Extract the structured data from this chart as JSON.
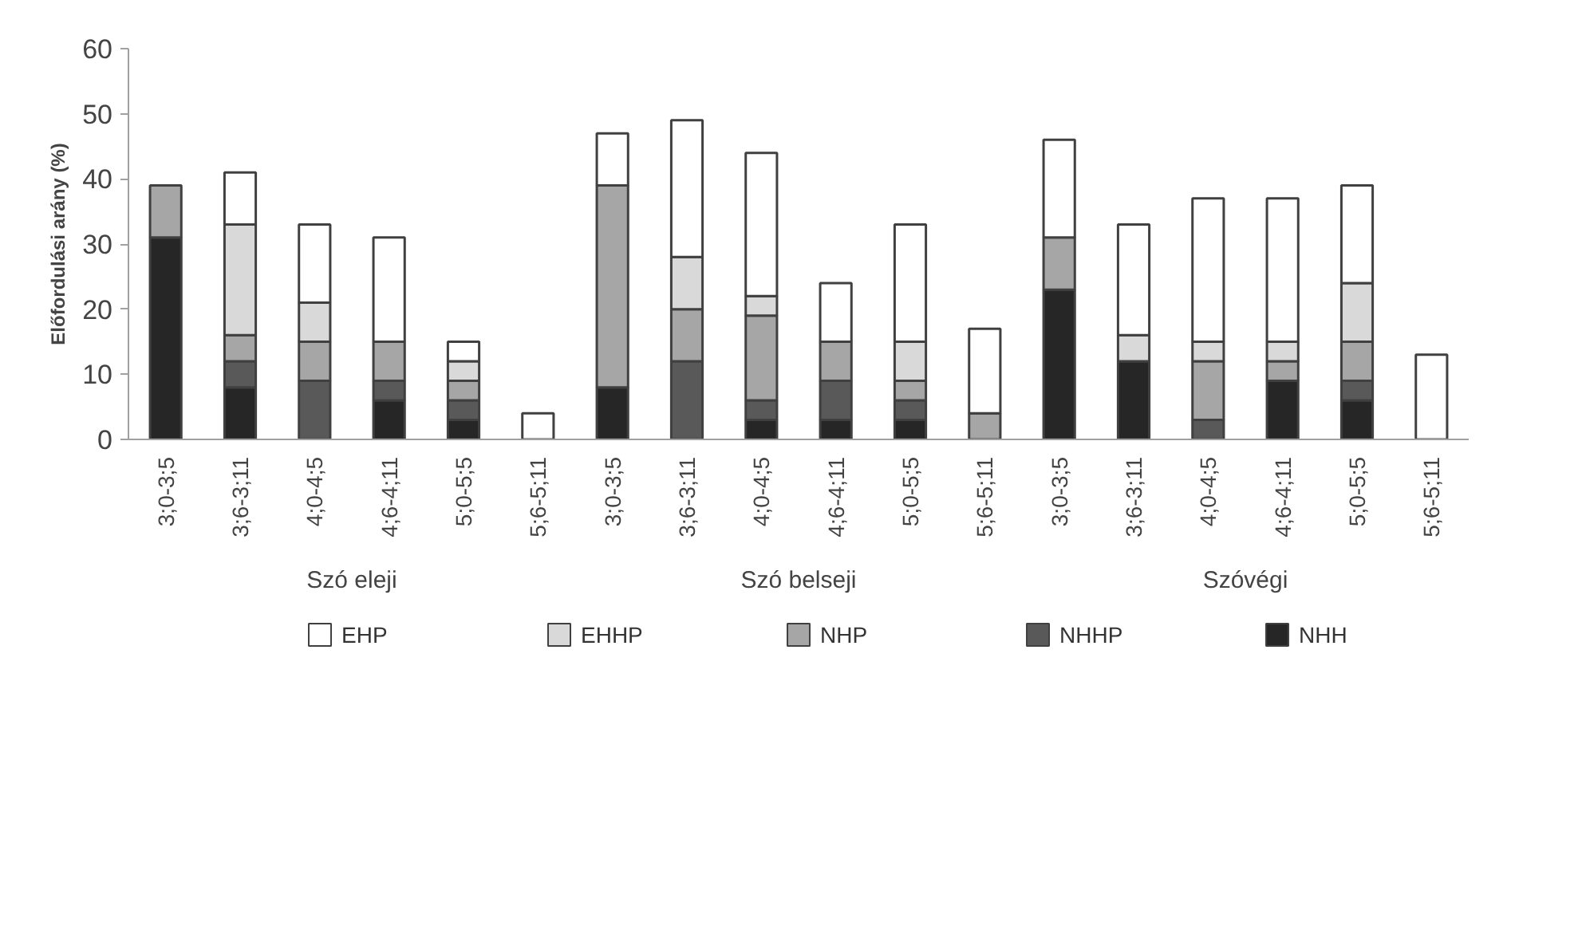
{
  "chart_data": {
    "type": "bar",
    "stacked": true,
    "ylabel": "Előfordulási arány (%)",
    "categories": [
      "3;0-3;5",
      "3;6-3;11",
      "4;0-4;5",
      "4;6-4;11",
      "5;0-5;5",
      "5;6-5;11",
      "3;0-3;5",
      "3;6-3;11",
      "4;0-4;5",
      "4;6-4;11",
      "5;0-5;5",
      "5;6-5;11",
      "3;0-3;5",
      "3;6-3;11",
      "4;0-4;5",
      "4;6-4;11",
      "5;0-5;5",
      "5;6-5;11"
    ],
    "annotations": [
      "Szó eleji",
      "Szó belseji",
      "Szóvégi"
    ],
    "series": [
      {
        "name": "NHH",
        "color": "#262626",
        "values": [
          31,
          8,
          0,
          6,
          3,
          0,
          8,
          0,
          3,
          3,
          3,
          0,
          23,
          12,
          0,
          9,
          6,
          0
        ]
      },
      {
        "name": "NHHP",
        "color": "#595959",
        "values": [
          0,
          4,
          9,
          3,
          3,
          0,
          0,
          12,
          3,
          6,
          3,
          0,
          0,
          0,
          3,
          0,
          3,
          0
        ]
      },
      {
        "name": "NHP",
        "color": "#a6a6a6",
        "values": [
          8,
          4,
          6,
          6,
          3,
          0,
          31,
          8,
          13,
          6,
          3,
          4,
          8,
          0,
          9,
          3,
          6,
          0
        ]
      },
      {
        "name": "EHHP",
        "color": "#d9d9d9",
        "values": [
          0,
          17,
          6,
          0,
          3,
          0,
          0,
          8,
          3,
          0,
          6,
          0,
          0,
          4,
          3,
          3,
          9,
          0
        ]
      },
      {
        "name": "EHP",
        "color": "#ffffff",
        "values": [
          0,
          8,
          12,
          16,
          3,
          4,
          8,
          21,
          22,
          9,
          18,
          13,
          15,
          17,
          22,
          22,
          15,
          13
        ]
      }
    ],
    "ylim": [
      0,
      60
    ],
    "yticks": [
      0,
      10,
      20,
      30,
      40,
      50,
      60
    ],
    "grid": false,
    "legend": "bottom"
  }
}
